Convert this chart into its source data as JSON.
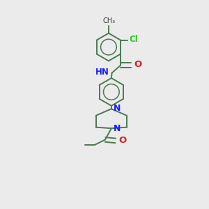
{
  "bg_color": "#ebebeb",
  "bond_color": "#4a7a52",
  "n_color": "#1a1aff",
  "o_color": "#dd2222",
  "cl_color": "#22cc22",
  "bond_lw": 1.4,
  "dbo": 0.045,
  "ring_r": 0.27,
  "xlim": [
    -0.6,
    1.2
  ],
  "ylim": [
    -0.4,
    3.6
  ]
}
